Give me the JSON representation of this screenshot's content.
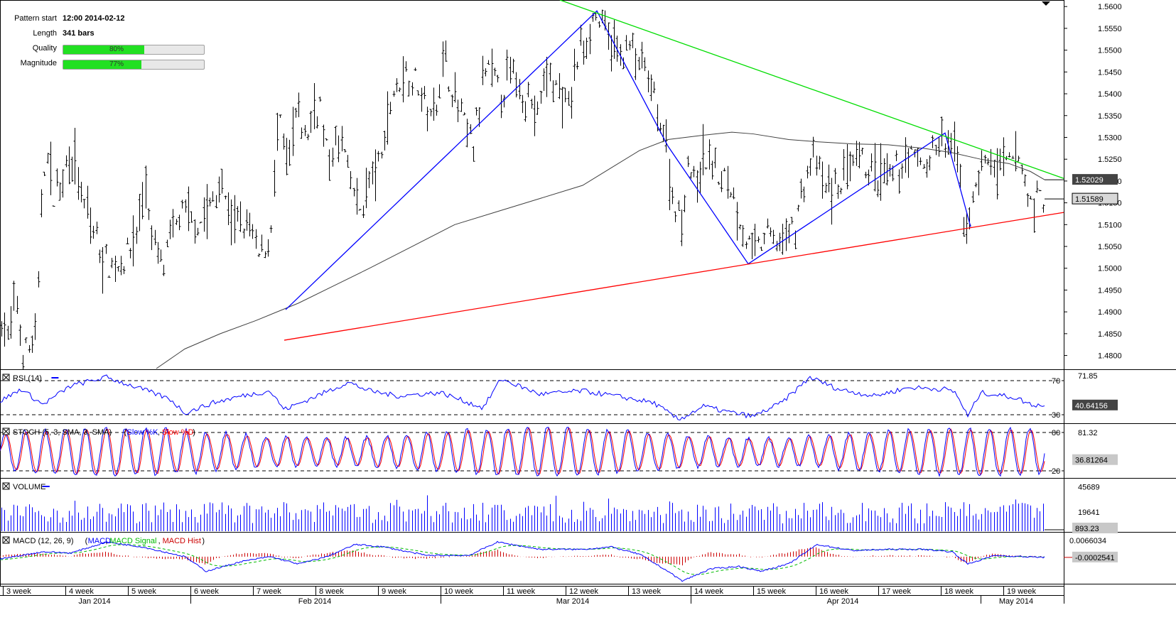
{
  "info_panel": {
    "pattern_start_label": "Pattern start",
    "pattern_start_value": "12:00 2014-02-12",
    "length_label": "Length",
    "length_value": "341 bars",
    "quality_label": "Quality",
    "quality_value": "80%",
    "quality_fraction": 0.8,
    "magnitude_label": "Magnitude",
    "magnitude_value": "77%",
    "magnitude_fraction": 0.77
  },
  "colors": {
    "price_bars": "#000000",
    "zigzag": "#0000ff",
    "resistance": "#00dd00",
    "support": "#ff0000",
    "moving_average": "#404040",
    "rsi_line": "#0000ff",
    "stoch_k": "#0000ff",
    "stoch_d": "#ff0000",
    "volume": "#0000ff",
    "macd": "#0000ff",
    "macd_signal": "#00bb00",
    "macd_hist": "#cc0000",
    "current_price_box": "#444444"
  },
  "chart_data": [
    {
      "type": "candlestick",
      "panel": "price",
      "ylim": [
        1.477,
        1.5615
      ],
      "y_ticks": [
        "1.5600",
        "1.5550",
        "1.5500",
        "1.5450",
        "1.5400",
        "1.5350",
        "1.5300",
        "1.5250",
        "1.5200",
        "1.5150",
        "1.5100",
        "1.5050",
        "1.5000",
        "1.4950",
        "1.4900",
        "1.4850",
        "1.4800"
      ],
      "y_tick_values": [
        1.56,
        1.555,
        1.55,
        1.545,
        1.54,
        1.535,
        1.53,
        1.525,
        1.52,
        1.515,
        1.51,
        1.505,
        1.5,
        1.495,
        1.49,
        1.485,
        1.48
      ],
      "x_week_labels": [
        "3 week",
        "4 week",
        "5 week",
        "6 week",
        "7 week",
        "8 week",
        "9 week",
        "10 week",
        "11 week",
        "12 week",
        "13 week",
        "14 week",
        "15 week",
        "16 week",
        "17 week",
        "18 week",
        "19 week"
      ],
      "x_month_labels": [
        "Jan 2014",
        "Feb 2014",
        "Mar 2014",
        "Apr 2014",
        "May 2014"
      ],
      "bar_count": 341,
      "price_anchors": [
        [
          0,
          1.49
        ],
        [
          12,
          1.483
        ],
        [
          22,
          1.494
        ],
        [
          30,
          1.481
        ],
        [
          40,
          1.481
        ],
        [
          52,
          1.485
        ],
        [
          58,
          1.516
        ],
        [
          64,
          1.527
        ],
        [
          75,
          1.517
        ],
        [
          85,
          1.52
        ],
        [
          100,
          1.528
        ],
        [
          115,
          1.515
        ],
        [
          130,
          1.509
        ],
        [
          145,
          1.502
        ],
        [
          160,
          1.5
        ],
        [
          175,
          1.502
        ],
        [
          190,
          1.507
        ],
        [
          205,
          1.52
        ],
        [
          213,
          1.506
        ],
        [
          230,
          1.5
        ],
        [
          250,
          1.512
        ],
        [
          265,
          1.512
        ],
        [
          280,
          1.51
        ],
        [
          298,
          1.515
        ],
        [
          310,
          1.519
        ],
        [
          328,
          1.51
        ],
        [
          350,
          1.51
        ],
        [
          365,
          1.502
        ],
        [
          380,
          1.508
        ],
        [
          392,
          1.534
        ],
        [
          405,
          1.523
        ],
        [
          418,
          1.536
        ],
        [
          430,
          1.53
        ],
        [
          443,
          1.537
        ],
        [
          450,
          1.538
        ],
        [
          461,
          1.524
        ],
        [
          480,
          1.53
        ],
        [
          492,
          1.52
        ],
        [
          505,
          1.513
        ],
        [
          520,
          1.52
        ],
        [
          535,
          1.524
        ],
        [
          550,
          1.539
        ],
        [
          570,
          1.545
        ],
        [
          590,
          1.542
        ],
        [
          605,
          1.534
        ],
        [
          625,
          1.548
        ],
        [
          645,
          1.536
        ],
        [
          665,
          1.528
        ],
        [
          685,
          1.546
        ],
        [
          705,
          1.54
        ],
        [
          720,
          1.545
        ],
        [
          740,
          1.54
        ],
        [
          755,
          1.535
        ],
        [
          772,
          1.546
        ],
        [
          785,
          1.54
        ],
        [
          800,
          1.536
        ],
        [
          812,
          1.548
        ],
        [
          825,
          1.553
        ],
        [
          835,
          1.558
        ],
        [
          843,
          1.557
        ],
        [
          855,
          1.553
        ],
        [
          870,
          1.549
        ],
        [
          885,
          1.551
        ],
        [
          905,
          1.546
        ],
        [
          920,
          1.539
        ],
        [
          935,
          1.53
        ],
        [
          945,
          1.518
        ],
        [
          958,
          1.51
        ],
        [
          968,
          1.525
        ],
        [
          978,
          1.518
        ],
        [
          990,
          1.525
        ],
        [
          1000,
          1.525
        ],
        [
          1012,
          1.521
        ],
        [
          1025,
          1.52
        ],
        [
          1035,
          1.515
        ],
        [
          1050,
          1.506
        ],
        [
          1065,
          1.504
        ],
        [
          1080,
          1.508
        ],
        [
          1095,
          1.506
        ],
        [
          1110,
          1.508
        ],
        [
          1120,
          1.511
        ],
        [
          1135,
          1.522
        ],
        [
          1148,
          1.525
        ],
        [
          1160,
          1.518
        ],
        [
          1175,
          1.518
        ],
        [
          1190,
          1.522
        ],
        [
          1210,
          1.524
        ],
        [
          1225,
          1.522
        ],
        [
          1240,
          1.52
        ],
        [
          1260,
          1.522
        ],
        [
          1280,
          1.526
        ],
        [
          1300,
          1.524
        ],
        [
          1315,
          1.527
        ],
        [
          1330,
          1.529
        ],
        [
          1345,
          1.527
        ],
        [
          1355,
          1.512
        ],
        [
          1365,
          1.511
        ],
        [
          1375,
          1.522
        ],
        [
          1390,
          1.525
        ],
        [
          1405,
          1.522
        ],
        [
          1420,
          1.524
        ],
        [
          1435,
          1.525
        ],
        [
          1448,
          1.515
        ],
        [
          1458,
          1.516
        ],
        [
          1470,
          1.5159
        ]
      ]
    },
    {
      "type": "line",
      "panel": "price",
      "name": "moving average",
      "points": [
        [
          220,
          1.477
        ],
        [
          260,
          1.4815
        ],
        [
          310,
          1.485
        ],
        [
          360,
          1.488
        ],
        [
          420,
          1.492
        ],
        [
          470,
          1.496
        ],
        [
          520,
          1.5
        ],
        [
          580,
          1.505
        ],
        [
          640,
          1.51
        ],
        [
          700,
          1.513
        ],
        [
          760,
          1.516
        ],
        [
          820,
          1.519
        ],
        [
          860,
          1.523
        ],
        [
          900,
          1.527
        ],
        [
          940,
          1.5295
        ],
        [
          990,
          1.5305
        ],
        [
          1030,
          1.5312
        ],
        [
          1060,
          1.5308
        ],
        [
          1110,
          1.5295
        ],
        [
          1150,
          1.529
        ],
        [
          1200,
          1.5285
        ],
        [
          1250,
          1.5283
        ],
        [
          1300,
          1.5275
        ],
        [
          1340,
          1.5265
        ],
        [
          1380,
          1.525
        ],
        [
          1420,
          1.524
        ],
        [
          1450,
          1.5222
        ],
        [
          1470,
          1.5203
        ]
      ]
    },
    {
      "type": "line",
      "panel": "price",
      "name": "zigzag",
      "points": [
        [
          402,
          1.4905
        ],
        [
          840,
          1.559
        ],
        [
          940,
          1.528
        ],
        [
          1053,
          1.501
        ],
        [
          1330,
          1.531
        ],
        [
          1366,
          1.5095
        ]
      ]
    },
    {
      "type": "line",
      "panel": "price",
      "name": "resistance",
      "points": [
        [
          788,
          1.5615
        ],
        [
          1497,
          1.5206
        ]
      ]
    },
    {
      "type": "line",
      "panel": "price",
      "name": "support",
      "points": [
        [
          400,
          1.4835
        ],
        [
          1497,
          1.5128
        ]
      ]
    },
    {
      "type": "line",
      "panel": "rsi",
      "label": "RSI (14)",
      "ylim": [
        20,
        80
      ],
      "levels": [
        70,
        30
      ],
      "level_labels": [
        "70",
        "30"
      ],
      "tick_label": "71.85",
      "current_value": "40.64156",
      "anchors": [
        [
          0,
          46
        ],
        [
          30,
          60
        ],
        [
          60,
          42
        ],
        [
          100,
          64
        ],
        [
          150,
          74
        ],
        [
          200,
          60
        ],
        [
          240,
          48
        ],
        [
          260,
          32
        ],
        [
          300,
          44
        ],
        [
          340,
          52
        ],
        [
          380,
          58
        ],
        [
          400,
          36
        ],
        [
          440,
          50
        ],
        [
          490,
          68
        ],
        [
          520,
          58
        ],
        [
          560,
          52
        ],
        [
          620,
          56
        ],
        [
          680,
          38
        ],
        [
          705,
          72
        ],
        [
          760,
          54
        ],
        [
          820,
          58
        ],
        [
          880,
          50
        ],
        [
          920,
          44
        ],
        [
          955,
          24
        ],
        [
          990,
          40
        ],
        [
          1020,
          34
        ],
        [
          1060,
          28
        ],
        [
          1100,
          44
        ],
        [
          1140,
          74
        ],
        [
          1180,
          60
        ],
        [
          1230,
          52
        ],
        [
          1280,
          62
        ],
        [
          1330,
          60
        ],
        [
          1345,
          56
        ],
        [
          1362,
          28
        ],
        [
          1380,
          56
        ],
        [
          1430,
          50
        ],
        [
          1450,
          42
        ],
        [
          1470,
          41
        ]
      ]
    },
    {
      "type": "line",
      "panel": "stoch",
      "label": "STOCH (5, 3, SMA, 3, SMA)",
      "legend": [
        "Slow %K",
        "Slow %D"
      ],
      "ylim": [
        10,
        90
      ],
      "levels": [
        80,
        20
      ],
      "level_labels": [
        "80",
        "20"
      ],
      "tick_label": "81.32",
      "current_value": "36.81264",
      "wave_count": 52
    },
    {
      "type": "bar",
      "panel": "volume",
      "label": "VOLUME",
      "tick_labels": [
        "45689",
        "19641"
      ],
      "current_value": "893.23",
      "ylim": [
        0,
        52000
      ]
    },
    {
      "type": "line",
      "panel": "macd",
      "label": "MACD (12, 26, 9)",
      "legend": [
        "MACD",
        "MACD Signal",
        "MACD Hist"
      ],
      "tick_label": "0.0066034",
      "current_value": "-0.0002541",
      "ylim": [
        -0.012,
        0.009
      ],
      "anchors": [
        [
          0,
          -0.001
        ],
        [
          60,
          0.002
        ],
        [
          100,
          0.0015
        ],
        [
          150,
          0.006
        ],
        [
          200,
          0.004
        ],
        [
          260,
          0.0
        ],
        [
          290,
          -0.006
        ],
        [
          340,
          -0.002
        ],
        [
          380,
          0.0
        ],
        [
          420,
          -0.003
        ],
        [
          460,
          0.0
        ],
        [
          500,
          0.005
        ],
        [
          540,
          0.004
        ],
        [
          600,
          0.0005
        ],
        [
          660,
          0.0005
        ],
        [
          700,
          0.006
        ],
        [
          760,
          0.003
        ],
        [
          820,
          0.003
        ],
        [
          860,
          0.004
        ],
        [
          900,
          0.001
        ],
        [
          940,
          -0.006
        ],
        [
          960,
          -0.01
        ],
        [
          1000,
          -0.005
        ],
        [
          1040,
          -0.004
        ],
        [
          1070,
          -0.006
        ],
        [
          1110,
          -0.003
        ],
        [
          1150,
          0.005
        ],
        [
          1200,
          0.0025
        ],
        [
          1250,
          0.003
        ],
        [
          1300,
          0.003
        ],
        [
          1340,
          0.002
        ],
        [
          1362,
          -0.003
        ],
        [
          1400,
          0.0005
        ],
        [
          1440,
          0.0
        ],
        [
          1470,
          -0.0003
        ]
      ]
    }
  ],
  "right_labels": {
    "ma_value": "1.52029",
    "price_value": "1.51589"
  }
}
